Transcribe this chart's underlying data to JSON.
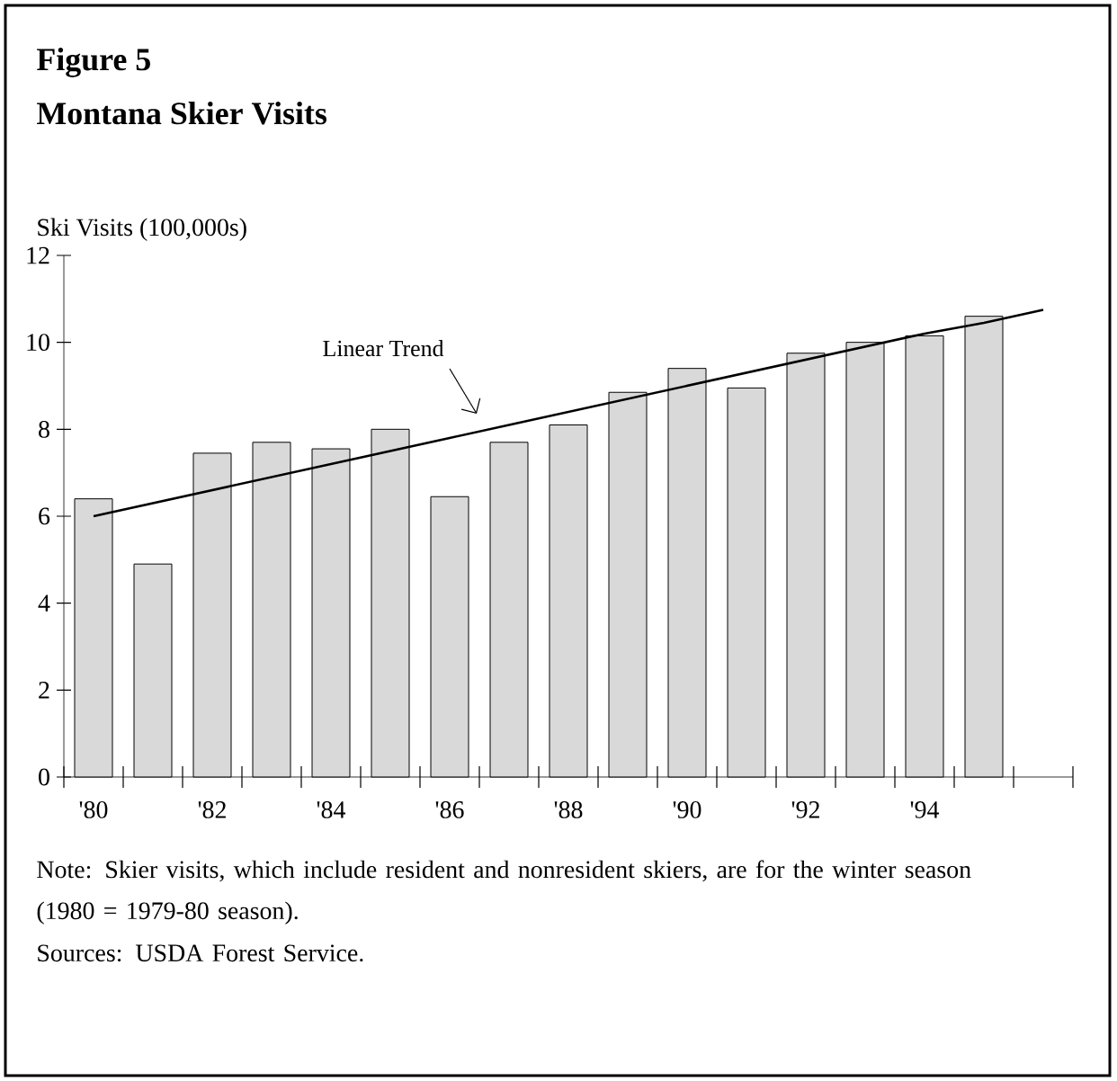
{
  "chart_data": {
    "type": "bar",
    "title": "Figure 5",
    "subtitle": "Montana Skier Visits",
    "ylabel": "Ski Visits (100,000s)",
    "categories": [
      "'80",
      null,
      "'82",
      null,
      "'84",
      null,
      "'86",
      null,
      "'88",
      null,
      "'90",
      null,
      "'92",
      null,
      "'94",
      null,
      null
    ],
    "series": [
      {
        "color": "#d9d9d9",
        "values": [
          6.4,
          4.9,
          7.45,
          7.7,
          7.55,
          8.0,
          6.45,
          7.7,
          8.1,
          8.85,
          9.4,
          8.95,
          9.75,
          10.0,
          10.15,
          10.6,
          null
        ]
      },
      {
        "type": "line",
        "color": "#000000",
        "values": [
          6.0,
          6.3,
          6.6,
          6.9,
          7.2,
          7.5,
          7.8,
          8.1,
          8.4,
          8.7,
          9.0,
          9.3,
          9.6,
          9.9,
          10.2,
          10.45,
          10.75
        ]
      }
    ],
    "ylim": [
      0,
      12
    ],
    "yticks": [
      0,
      2,
      4,
      6,
      8,
      10,
      12
    ],
    "annotations": [
      "Linear Trend",
      "Note:  Skier visits, which include resident and nonresident skiers, are for the winter season (1980 = 1979-80 season).",
      "Sources: USDA Forest Service."
    ]
  }
}
